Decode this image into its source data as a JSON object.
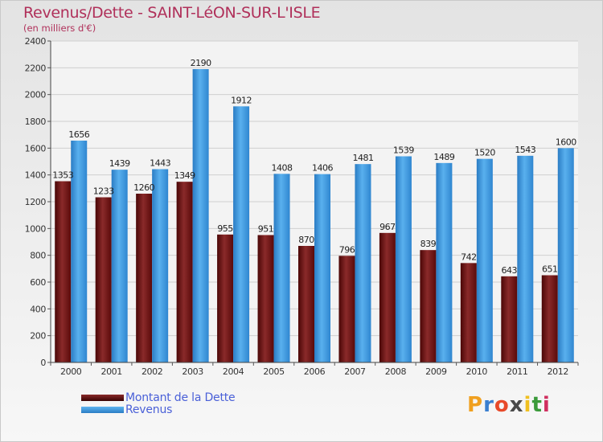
{
  "title": "Revenus/Dette - SAINT-LéON-SUR-L'ISLE",
  "subtitle": "(en milliers d'€)",
  "logo": "Proxiti",
  "colors": {
    "dette": "#6e1010",
    "revenus": "#3d96dc",
    "title": "#b0305a",
    "legend_text": "#4a60d8"
  },
  "chart_data": {
    "type": "bar",
    "categories": [
      "2000",
      "2001",
      "2002",
      "2003",
      "2004",
      "2005",
      "2006",
      "2007",
      "2008",
      "2009",
      "2010",
      "2011",
      "2012"
    ],
    "series": [
      {
        "name": "Montant de la Dette",
        "values": [
          1353,
          1233,
          1260,
          1349,
          955,
          951,
          870,
          796,
          967,
          839,
          742,
          643,
          651
        ]
      },
      {
        "name": "Revenus",
        "values": [
          1656,
          1439,
          1443,
          2190,
          1912,
          1408,
          1406,
          1481,
          1539,
          1489,
          1520,
          1543,
          1600
        ]
      }
    ],
    "ylim": [
      0,
      2400
    ],
    "yticks": [
      0,
      200,
      400,
      600,
      800,
      1000,
      1200,
      1400,
      1600,
      1800,
      2000,
      2200,
      2400
    ],
    "grid": true,
    "legend": "bottom-left"
  }
}
